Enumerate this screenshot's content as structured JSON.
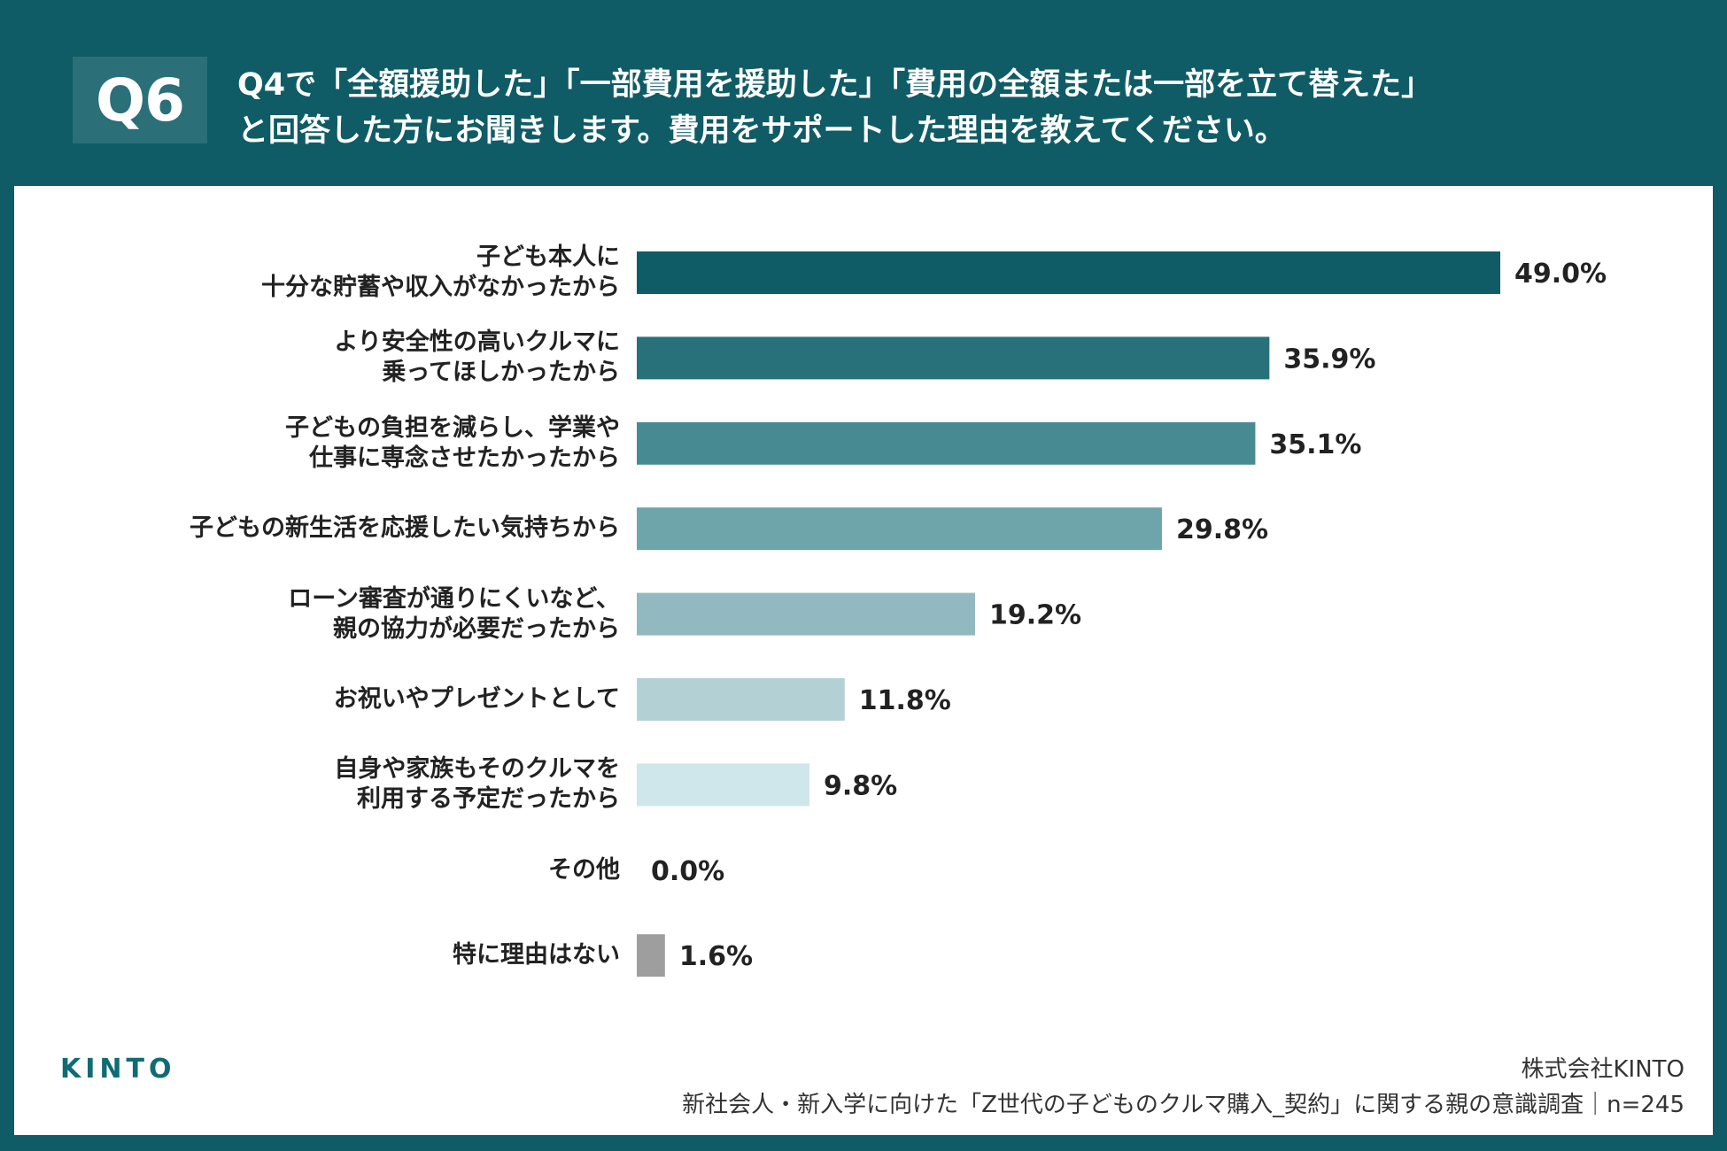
{
  "header": {
    "badge": "Q6",
    "title_line1": "Q4で「全額援助した」「一部費用を援助した」「費用の全額または一部を立て替えた」",
    "title_line2": "と回答した方にお聞きします。費用をサポートした理由を教えてください。"
  },
  "footer": {
    "logo": "KINTO",
    "company": "株式会社KINTO",
    "survey": "新社会人・新入学に向けた「Z世代の子どものクルマ購入_契約」に関する親の意識調査｜n=245"
  },
  "colors": {
    "background": "#0f5c66",
    "bars": [
      "#0f5c66",
      "#29717a",
      "#488a91",
      "#6ea5ab",
      "#92b9c0",
      "#b3d1d5",
      "#cfe6ea",
      "#c8dde0",
      "#9e9e9e"
    ]
  },
  "chart_data": {
    "type": "bar",
    "orientation": "horizontal",
    "unit": "%",
    "xlim": [
      0,
      50
    ],
    "grid": false,
    "categories": [
      [
        "子ども本人に",
        "十分な貯蓄や収入がなかったから"
      ],
      [
        "より安全性の高いクルマに",
        "乗ってほしかったから"
      ],
      [
        "子どもの負担を減らし、学業や",
        "仕事に専念させたかったから"
      ],
      [
        "子どもの新生活を応援したい気持ちから"
      ],
      [
        "ローン審査が通りにくいなど、",
        "親の協力が必要だったから"
      ],
      [
        "お祝いやプレゼントとして"
      ],
      [
        "自身や家族もそのクルマを",
        "利用する予定だったから"
      ],
      [
        "その他"
      ],
      [
        "特に理由はない"
      ]
    ],
    "values": [
      49.0,
      35.9,
      35.1,
      29.8,
      19.2,
      11.8,
      9.8,
      0.0,
      1.6
    ],
    "value_labels": [
      "49.0%",
      "35.9%",
      "35.1%",
      "29.8%",
      "19.2%",
      "11.8%",
      "9.8%",
      "0.0%",
      "1.6%"
    ]
  }
}
